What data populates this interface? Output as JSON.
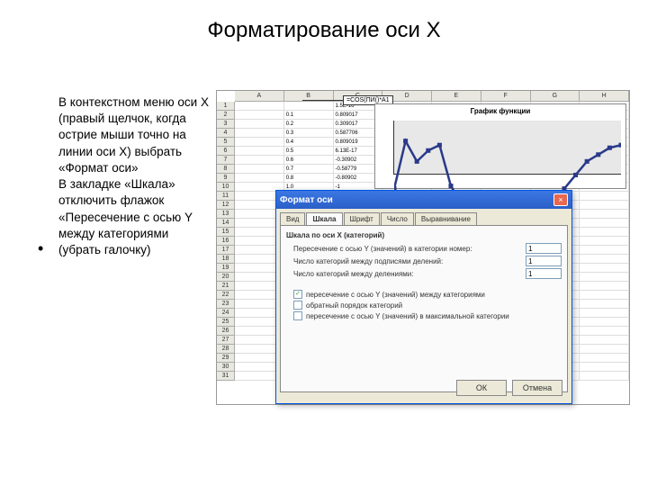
{
  "title": "Форматирование оси Х",
  "body": {
    "p1": "В контекстном меню оси Х (правый щелчок, когда острие мыши точно на линии оси Х) выбрать «Формат оси»",
    "p2": "В закладке «Шкала» отключить флажок «Пересечение с осью Y между категориями (убрать галочку)"
  },
  "bullet": "•",
  "spreadsheet": {
    "cols": [
      "A",
      "B",
      "C",
      "D",
      "E",
      "F",
      "G",
      "H"
    ],
    "rows": [
      "1",
      "2",
      "3",
      "4",
      "5",
      "6",
      "7",
      "8",
      "9",
      "10",
      "11",
      "12",
      "13",
      "14",
      "15",
      "16",
      "17",
      "18",
      "19",
      "20",
      "21",
      "22",
      "23",
      "24",
      "25",
      "26",
      "27",
      "28",
      "29",
      "30",
      "31"
    ],
    "data": [
      [
        "",
        "",
        "1.5E-16"
      ],
      [
        "",
        "0.1",
        "0.809017"
      ],
      [
        "",
        "0.2",
        "0.309017"
      ],
      [
        "",
        "0.3",
        "0.587706"
      ],
      [
        "",
        "0.4",
        "0.809019"
      ],
      [
        "",
        "0.5",
        "6.13E-17"
      ],
      [
        "",
        "0.6",
        "-0.30902"
      ],
      [
        "",
        "0.7",
        "-0.58779"
      ],
      [
        "",
        "0.8",
        "-0.80902"
      ],
      [
        "",
        "1.0",
        "-1"
      ]
    ],
    "formula": "=COS(ПИ()*A1"
  },
  "chart": {
    "title": "График функции",
    "points": [
      [
        0,
        0.5
      ],
      [
        0.05,
        0.15
      ],
      [
        0.1,
        0.3
      ],
      [
        0.15,
        0.22
      ],
      [
        0.2,
        0.18
      ],
      [
        0.25,
        0.48
      ],
      [
        0.3,
        0.62
      ],
      [
        0.35,
        0.75
      ],
      [
        0.4,
        0.82
      ],
      [
        0.45,
        0.88
      ],
      [
        0.5,
        0.95
      ],
      [
        0.55,
        0.9
      ],
      [
        0.6,
        0.82
      ],
      [
        0.65,
        0.72
      ],
      [
        0.7,
        0.62
      ],
      [
        0.75,
        0.5
      ],
      [
        0.8,
        0.4
      ],
      [
        0.85,
        0.3
      ],
      [
        0.9,
        0.25
      ],
      [
        0.95,
        0.2
      ],
      [
        1,
        0.18
      ]
    ],
    "line_color": "#2a3a8a",
    "marker_color": "#2a3a8a",
    "background": "#e8e8e8"
  },
  "dialog": {
    "title": "Формат оси",
    "close": "×",
    "tabs": [
      "Вид",
      "Шкала",
      "Шрифт",
      "Число",
      "Выравнивание"
    ],
    "active_tab": 1,
    "section1": "Шкала по оси X (категорий)",
    "row1_label": "Пересечение с осью Y (значений) в категории номер:",
    "row1_val": "1",
    "row2_label": "Число категорий между подписями делений:",
    "row2_val": "1",
    "row3_label": "Число категорий между делениями:",
    "row3_val": "1",
    "chk1": "пересечение с осью Y (значений) между категориями",
    "chk1_checked": "✓",
    "chk2": "обратный порядок категорий",
    "chk3": "пересечение с осью Y (значений) в максимальной категории",
    "ok": "ОК",
    "cancel": "Отмена"
  }
}
